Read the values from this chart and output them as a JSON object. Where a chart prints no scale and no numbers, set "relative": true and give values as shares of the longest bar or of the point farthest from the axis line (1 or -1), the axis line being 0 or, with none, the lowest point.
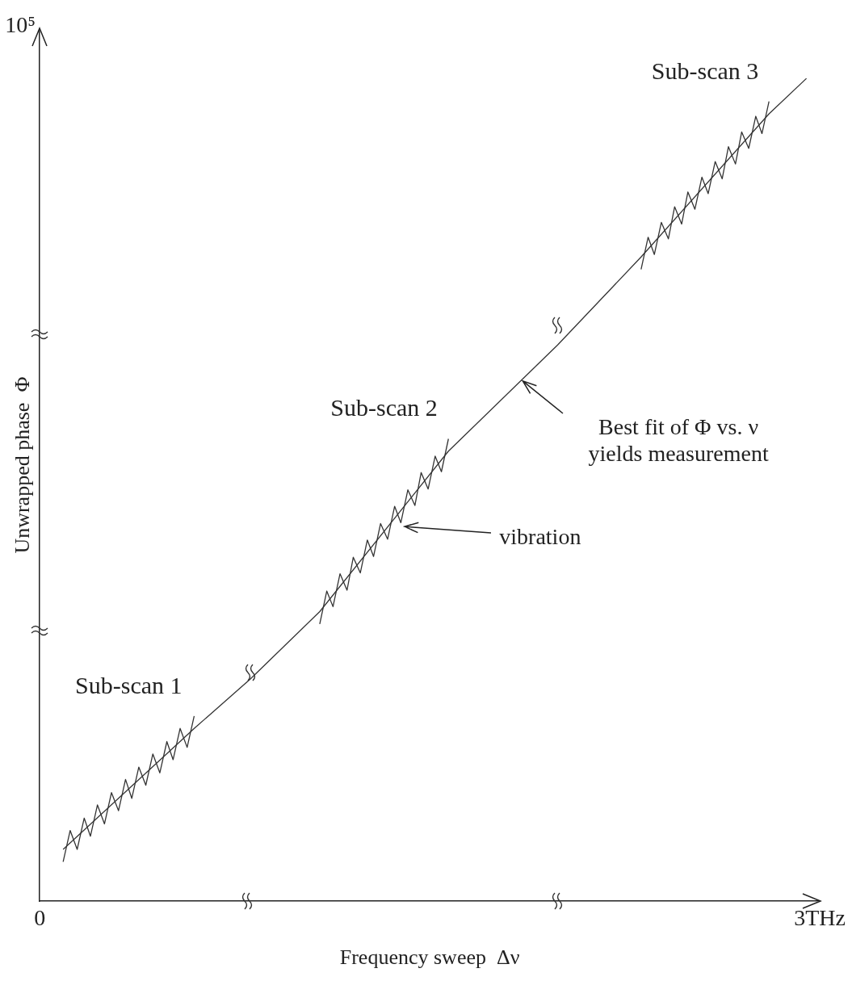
{
  "chart_data": {
    "type": "line",
    "relative": true,
    "xlabel": "Frequency sweep  Δν",
    "ylabel": "Unwrapped phase  Φ",
    "xlim": [
      0,
      3
    ],
    "xticks": [
      0,
      {
        "value": 3,
        "label": "3THz"
      }
    ],
    "legend": false,
    "marker": "none",
    "line_style": "solid",
    "series": [
      {
        "color": "#333333",
        "x": [
          0.09,
          0.594,
          0.81,
          1.077,
          1.572,
          1.992,
          2.313,
          2.805,
          2.949
        ],
        "values": [
          0.063,
          0.21,
          0.27,
          0.352,
          0.547,
          0.676,
          0.783,
          0.957,
          1
        ]
      },
      {
        "name": "Sub-scan 1",
        "color": "#333333",
        "x": [
          0.09,
          0.117,
          0.144,
          0.171,
          0.195,
          0.222,
          0.249,
          0.276,
          0.303,
          0.33,
          0.354,
          0.381,
          0.408,
          0.435,
          0.462,
          0.489,
          0.513,
          0.54,
          0.567,
          0.594
        ],
        "values": [
          0.048,
          0.086,
          0.063,
          0.101,
          0.079,
          0.117,
          0.094,
          0.132,
          0.11,
          0.148,
          0.125,
          0.163,
          0.141,
          0.179,
          0.156,
          0.194,
          0.172,
          0.21,
          0.187,
          0.225
        ]
      },
      {
        "name": "Sub-scan 2",
        "color": "#333333",
        "x": [
          1.077,
          1.104,
          1.128,
          1.155,
          1.182,
          1.206,
          1.233,
          1.26,
          1.284,
          1.311,
          1.338,
          1.365,
          1.389,
          1.416,
          1.443,
          1.467,
          1.494,
          1.521,
          1.545,
          1.572
        ],
        "values": [
          0.337,
          0.377,
          0.358,
          0.398,
          0.378,
          0.418,
          0.399,
          0.439,
          0.419,
          0.459,
          0.44,
          0.48,
          0.46,
          0.5,
          0.481,
          0.521,
          0.501,
          0.541,
          0.522,
          0.562
        ]
      },
      {
        "name": "Sub-scan 3",
        "color": "#333333",
        "x": [
          2.313,
          2.34,
          2.364,
          2.391,
          2.418,
          2.442,
          2.469,
          2.493,
          2.52,
          2.547,
          2.571,
          2.598,
          2.625,
          2.649,
          2.676,
          2.7,
          2.727,
          2.754,
          2.778,
          2.805
        ],
        "values": [
          0.768,
          0.807,
          0.786,
          0.825,
          0.805,
          0.844,
          0.823,
          0.862,
          0.841,
          0.88,
          0.86,
          0.899,
          0.878,
          0.917,
          0.896,
          0.935,
          0.915,
          0.954,
          0.933,
          0.972
        ]
      }
    ],
    "annotations": [
      "Best fit of Φ vs. ν\nyields measurement",
      "vibration",
      "10⁵"
    ]
  }
}
